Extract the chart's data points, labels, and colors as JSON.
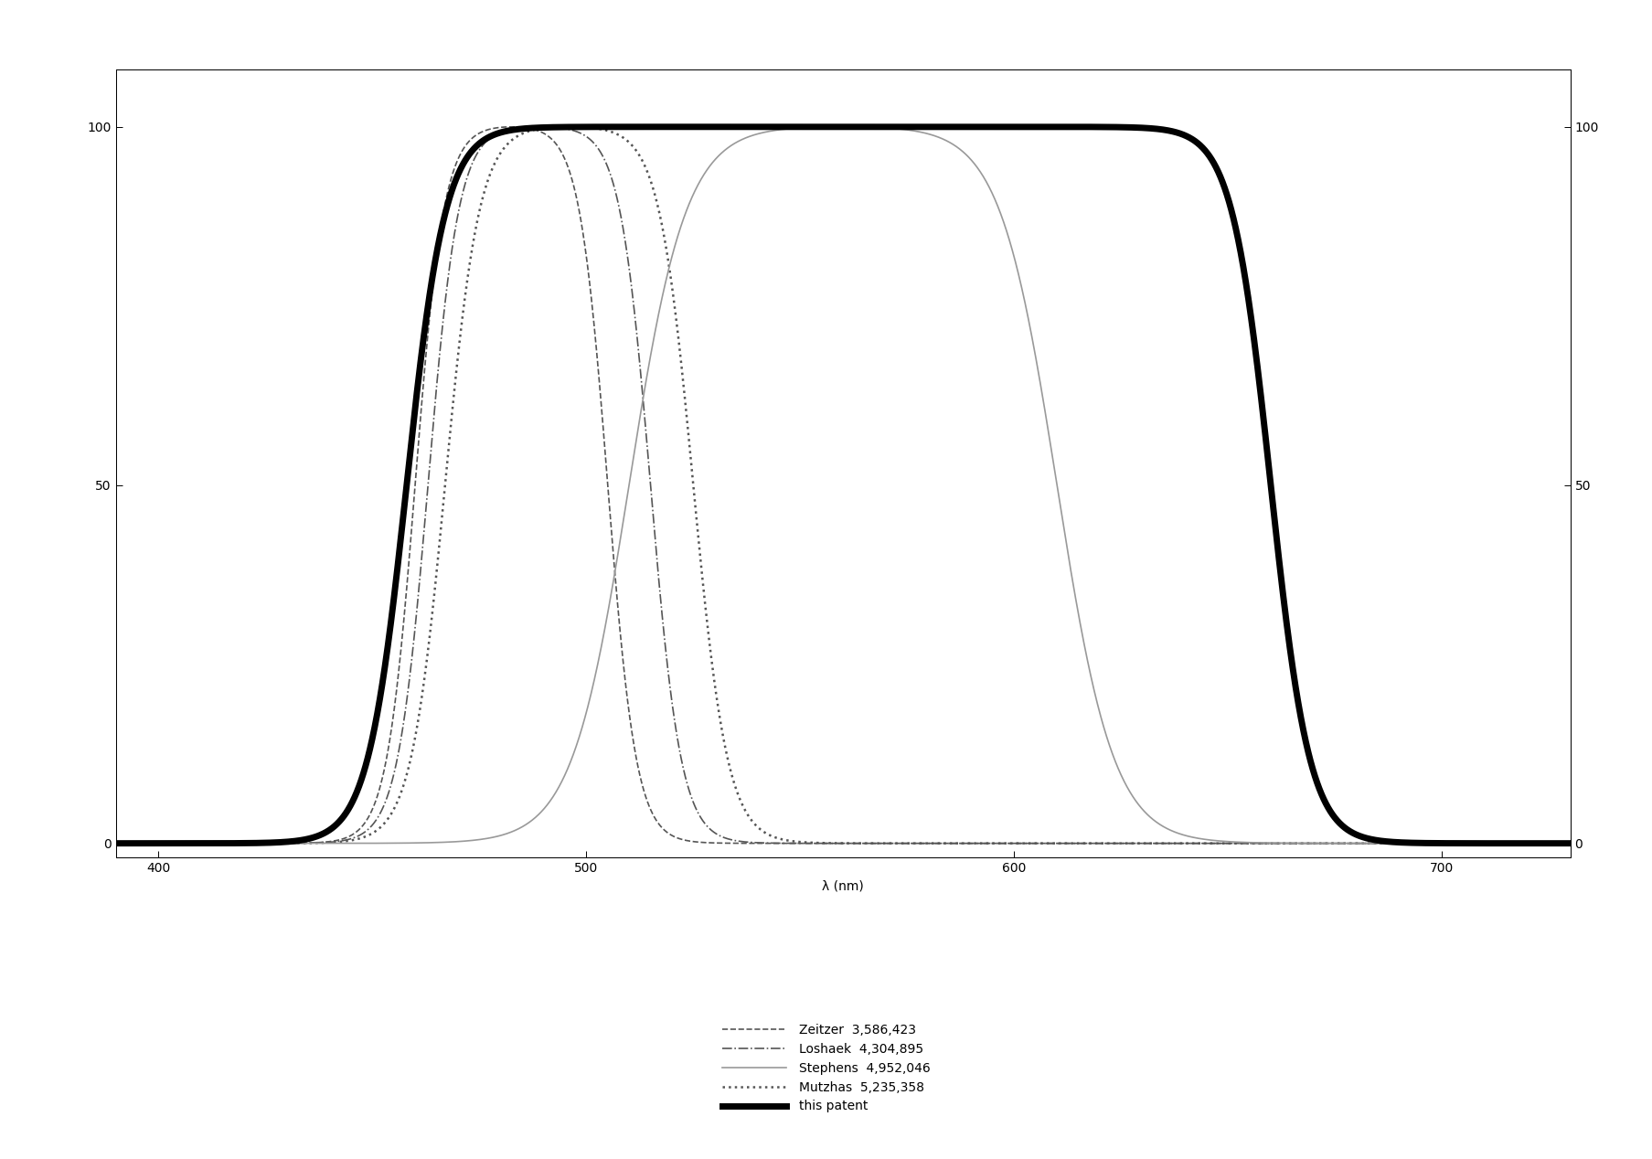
{
  "xlabel": "λ (nm)",
  "xlim": [
    390,
    730
  ],
  "ylim": [
    -2,
    108
  ],
  "xticks": [
    400,
    500,
    600,
    700
  ],
  "yticks": [
    0,
    50,
    100
  ],
  "ytick_labels": [
    "0",
    "50",
    "100"
  ],
  "xtick_labels": [
    "400",
    "500",
    "600",
    "700"
  ],
  "curves": [
    {
      "key": "zeitzer",
      "label": "Zeitzer  3,586,423",
      "low": 460,
      "high": 505,
      "steep_low": 30,
      "steep_high": 30,
      "style": "--",
      "lw": 1.2,
      "color": "#555555",
      "dashes": [
        5,
        3
      ]
    },
    {
      "key": "loshaek",
      "label": "Loshaek  4,304,895",
      "low": 463,
      "high": 515,
      "steep_low": 28,
      "steep_high": 28,
      "style": "-.",
      "lw": 1.2,
      "color": "#555555",
      "dashes": null
    },
    {
      "key": "mutzhas",
      "label": "Mutzhas  5,235,358",
      "low": 467,
      "high": 525,
      "steep_low": 25,
      "steep_high": 25,
      "style": ":",
      "lw": 1.8,
      "color": "#555555",
      "dashes": null
    },
    {
      "key": "stephens",
      "label": "Stephens  4,952,046",
      "low": 510,
      "high": 610,
      "steep_low": 15,
      "steep_high": 15,
      "style": "-",
      "lw": 1.2,
      "color": "#999999",
      "dashes": null
    },
    {
      "key": "this_patent",
      "label": "this patent",
      "low": 458,
      "high": 660,
      "steep_low": 22,
      "steep_high": 22,
      "style": "-",
      "lw": 5.0,
      "color": "#000000",
      "dashes": null
    }
  ],
  "legend_order": [
    "zeitzer",
    "loshaek",
    "stephens",
    "mutzhas",
    "this_patent"
  ]
}
